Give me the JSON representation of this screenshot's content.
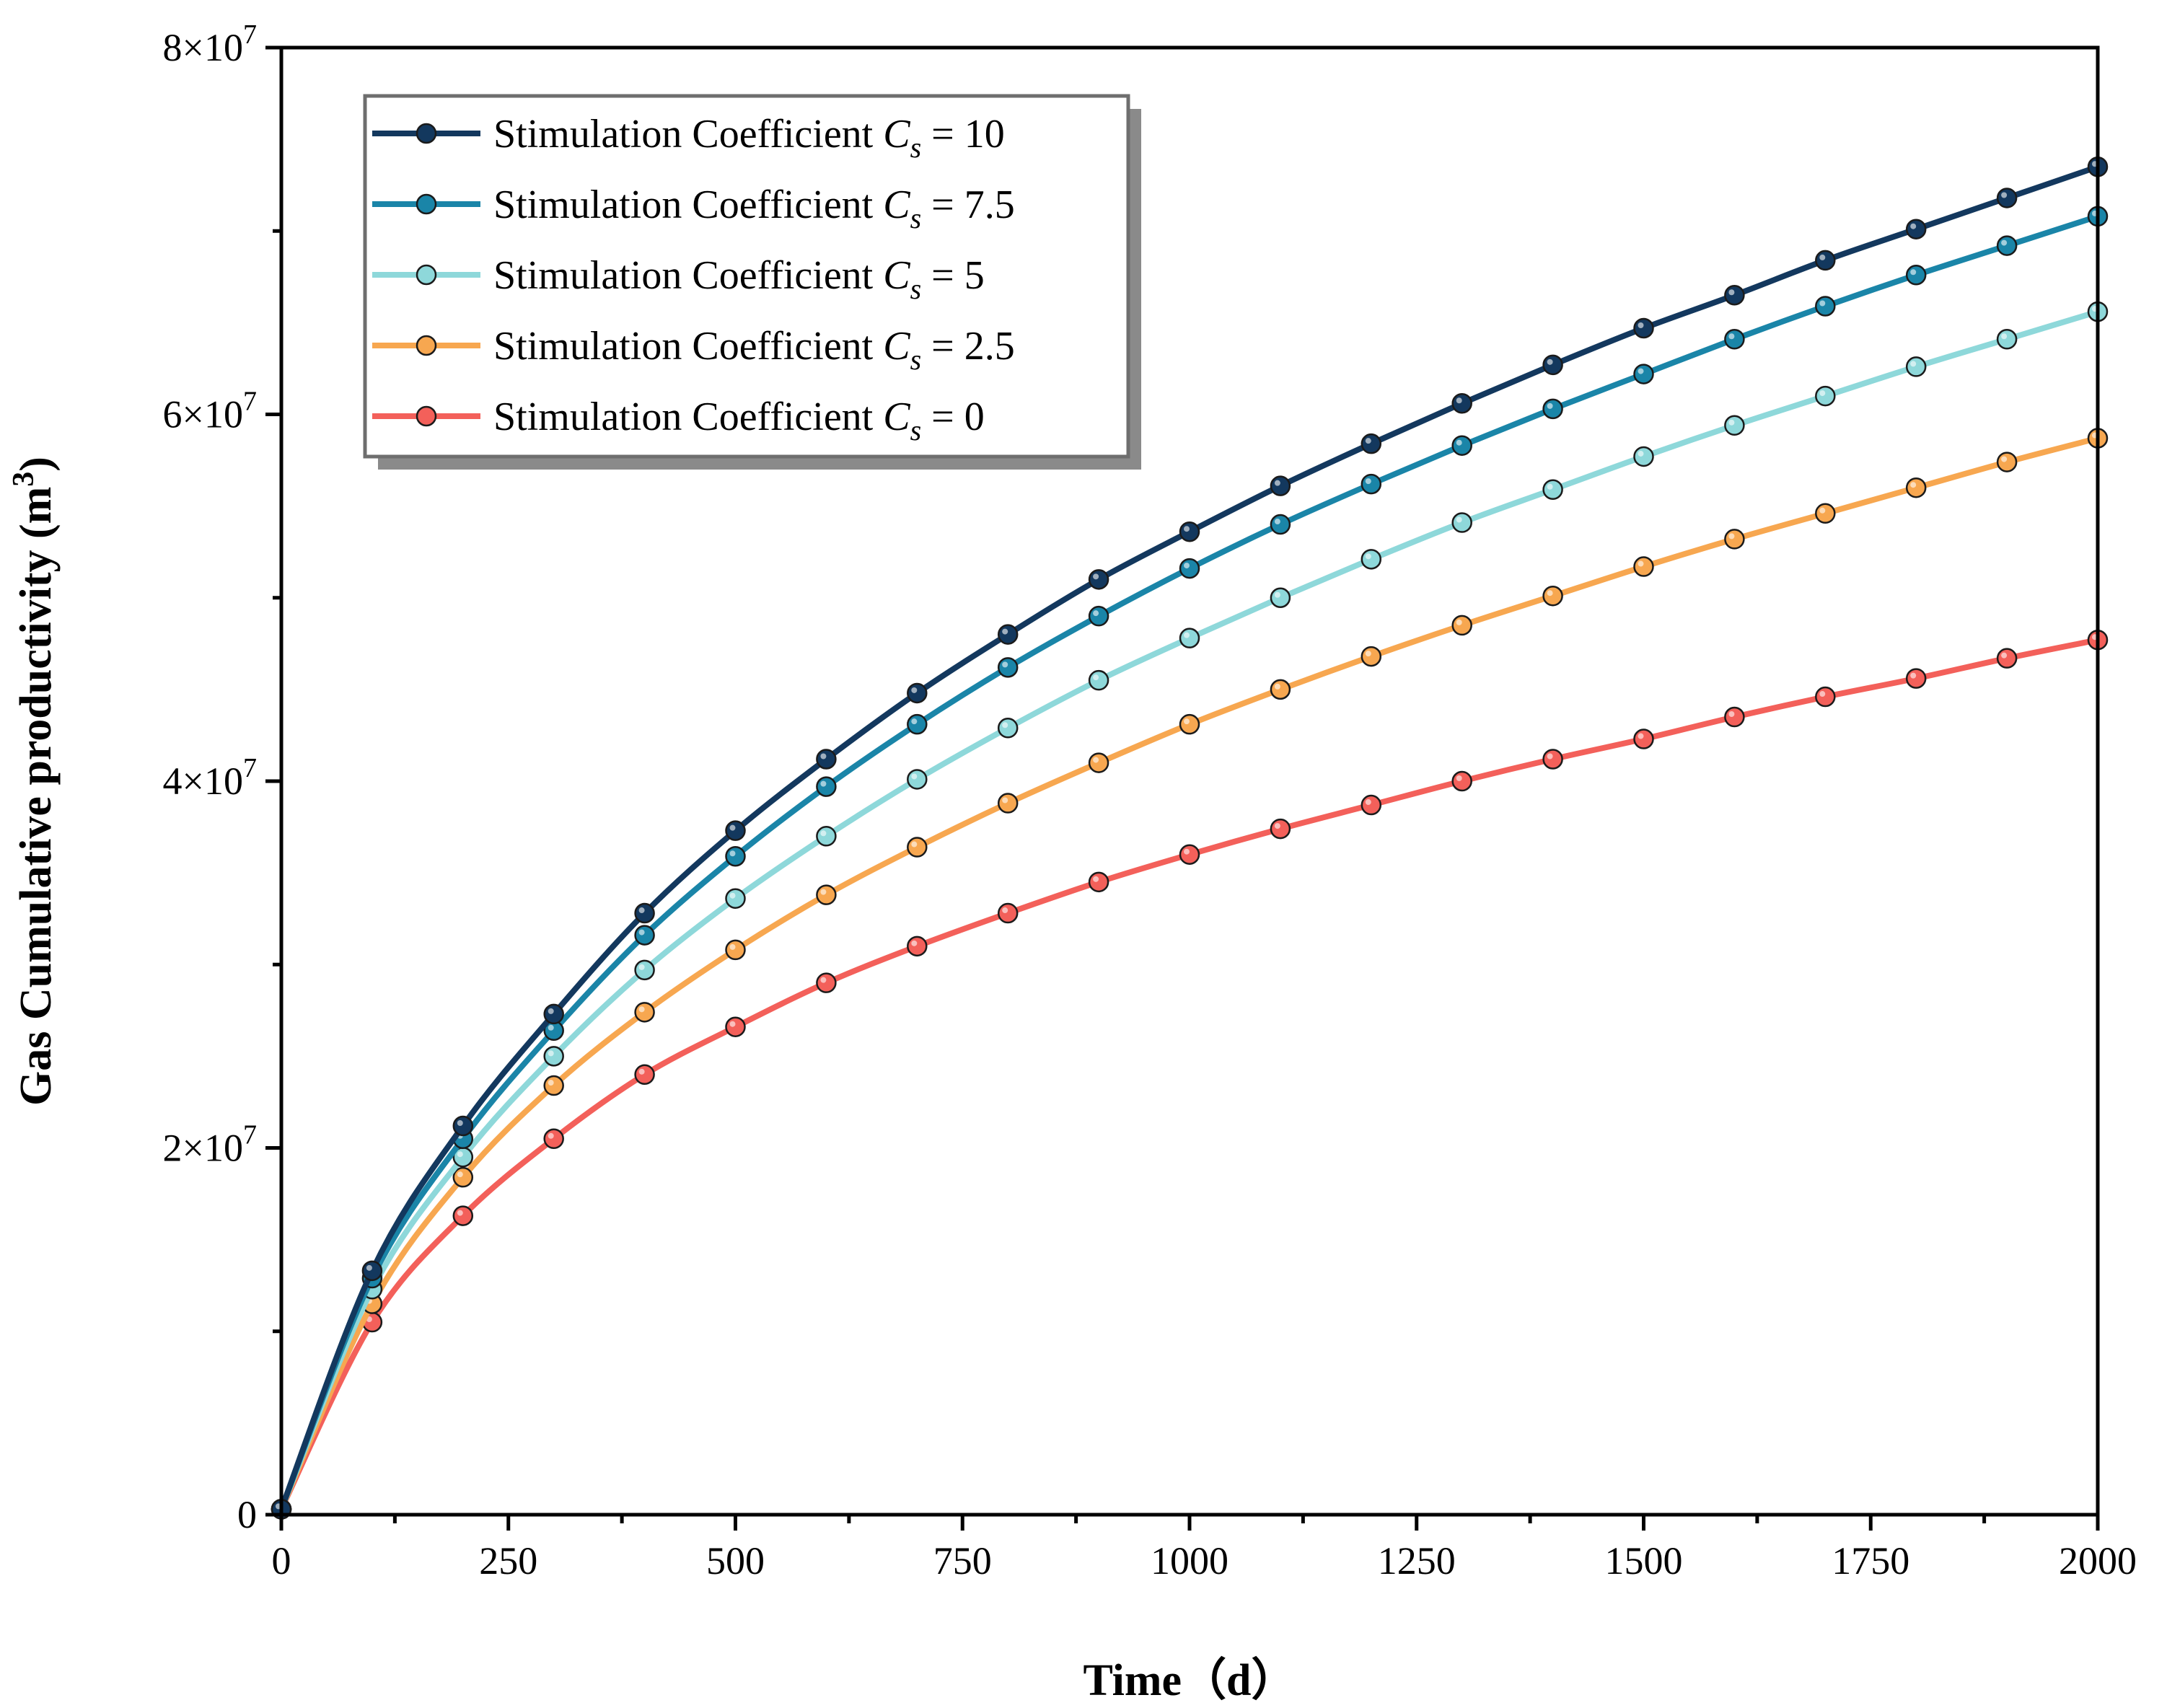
{
  "chart_data": {
    "type": "line",
    "title": "",
    "xlabel": "Time（d）",
    "ylabel": "Gas Cumulative productivity (m",
    "ylabel_sup": "3",
    "ylabel_close": ")",
    "xlim": [
      0,
      2000
    ],
    "ylim": [
      0,
      80000000
    ],
    "x_ticks": [
      0,
      250,
      500,
      750,
      1000,
      1250,
      1500,
      1750,
      2000
    ],
    "x_tick_labels": [
      "0",
      "250",
      "500",
      "750",
      "1000",
      "1250",
      "1500",
      "1750",
      "2000"
    ],
    "y_ticks": [
      0,
      20000000,
      40000000,
      60000000,
      80000000
    ],
    "y_tick_labels": [
      {
        "mant": "0",
        "exp": ""
      },
      {
        "mant": "2×10",
        "exp": "7"
      },
      {
        "mant": "4×10",
        "exp": "7"
      },
      {
        "mant": "6×10",
        "exp": "7"
      },
      {
        "mant": "8×10",
        "exp": "7"
      }
    ],
    "legend_position": "top-left",
    "legend_prefix": "Stimulation Coefficient ",
    "legend_symbol": "C",
    "legend_sub": "s",
    "x": [
      0,
      100,
      200,
      300,
      400,
      500,
      600,
      700,
      800,
      900,
      1000,
      1100,
      1200,
      1300,
      1400,
      1500,
      1600,
      1700,
      1800,
      1900,
      2000
    ],
    "series": [
      {
        "name": "Stimulation Coefficient Cs = 10",
        "value_label": "= 10",
        "color": "#13385e",
        "values": [
          0.3,
          13.3,
          21.2,
          27.3,
          32.8,
          37.3,
          41.2,
          44.8,
          48.0,
          51.0,
          53.6,
          56.1,
          58.4,
          60.6,
          62.7,
          64.7,
          66.5,
          68.4,
          70.1,
          71.8,
          73.5
        ]
      },
      {
        "name": "Stimulation Coefficient Cs = 7.5",
        "value_label": "= 7.5",
        "color": "#1a85a8",
        "values": [
          0.3,
          12.9,
          20.5,
          26.4,
          31.6,
          35.9,
          39.7,
          43.1,
          46.2,
          49.0,
          51.6,
          54.0,
          56.2,
          58.3,
          60.3,
          62.2,
          64.1,
          65.9,
          67.6,
          69.2,
          70.8
        ]
      },
      {
        "name": "Stimulation Coefficient Cs = 5",
        "value_label": "= 5",
        "color": "#8ed8da",
        "values": [
          0.3,
          12.3,
          19.5,
          25.0,
          29.7,
          33.6,
          37.0,
          40.1,
          42.9,
          45.5,
          47.8,
          50.0,
          52.1,
          54.1,
          55.9,
          57.7,
          59.4,
          61.0,
          62.6,
          64.1,
          65.6
        ]
      },
      {
        "name": "Stimulation Coefficient Cs = 2.5",
        "value_label": "= 2.5",
        "color": "#f7a750",
        "values": [
          0.3,
          11.5,
          18.4,
          23.4,
          27.4,
          30.8,
          33.8,
          36.4,
          38.8,
          41.0,
          43.1,
          45.0,
          46.8,
          48.5,
          50.1,
          51.7,
          53.2,
          54.6,
          56.0,
          57.4,
          58.7
        ]
      },
      {
        "name": "Stimulation Coefficient Cs = 0",
        "value_label": "= 0",
        "color": "#f3605a",
        "values": [
          0.3,
          10.5,
          16.3,
          20.5,
          24.0,
          26.6,
          29.0,
          31.0,
          32.8,
          34.5,
          36.0,
          37.4,
          38.7,
          40.0,
          41.2,
          42.3,
          43.5,
          44.6,
          45.6,
          46.7,
          47.7
        ]
      }
    ],
    "value_scale": 1000000
  }
}
